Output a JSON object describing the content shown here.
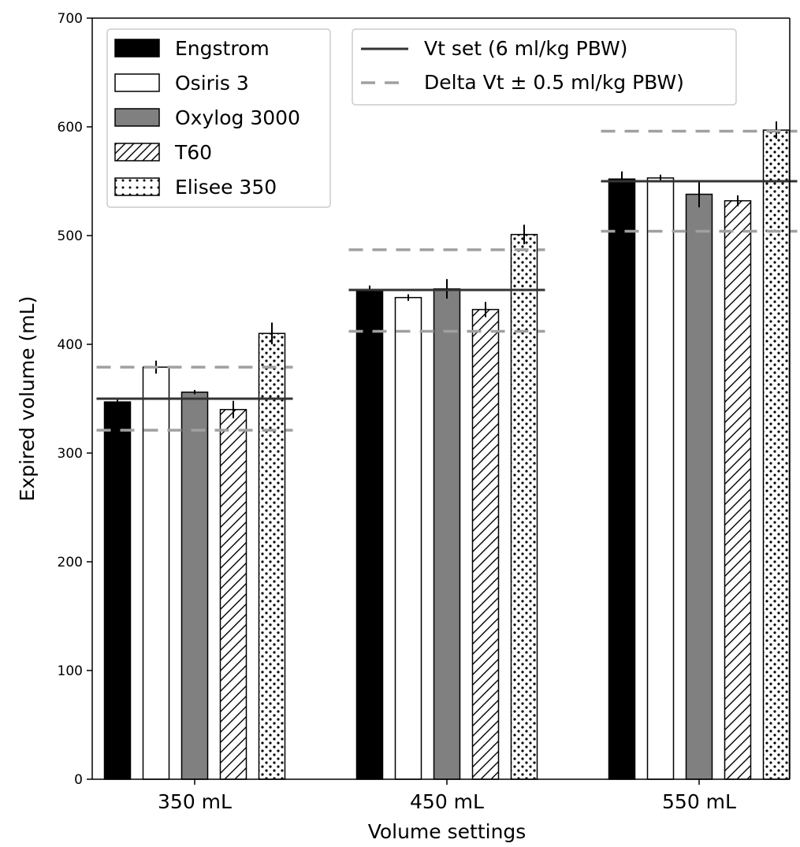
{
  "chart_data": {
    "type": "bar",
    "xlabel": "Volume settings",
    "ylabel": "Expired volume (mL)",
    "ylim": [
      0,
      700
    ],
    "yticks": [
      0,
      100,
      200,
      300,
      400,
      500,
      600,
      700
    ],
    "categories": [
      "350 mL",
      "450 mL",
      "550 mL"
    ],
    "series": [
      {
        "name": "Engstrom",
        "values": [
          347,
          450,
          552
        ],
        "errors": [
          3,
          4,
          7
        ],
        "fill": "#000000",
        "pattern": "solid"
      },
      {
        "name": "Osiris 3",
        "values": [
          379,
          443,
          553
        ],
        "errors": [
          6,
          3,
          3
        ],
        "fill": "#ffffff",
        "pattern": "solid"
      },
      {
        "name": "Oxylog 3000",
        "values": [
          356,
          451,
          538
        ],
        "errors": [
          2,
          9,
          12
        ],
        "fill": "#808080",
        "pattern": "solid"
      },
      {
        "name": "T60",
        "values": [
          340,
          432,
          532
        ],
        "errors": [
          8,
          7,
          5
        ],
        "fill": "#ffffff",
        "pattern": "hatch"
      },
      {
        "name": "Elisee 350",
        "values": [
          410,
          501,
          597
        ],
        "errors": [
          10,
          9,
          8
        ],
        "fill": "#ffffff",
        "pattern": "dots"
      }
    ],
    "reference_lines": [
      {
        "name": "Vt set (6 ml/kg PBW)",
        "style": "solid",
        "color": "#333333",
        "values": [
          350,
          450,
          550
        ]
      },
      {
        "name": "Delta Vt ± 0.5 ml/kg PBW)",
        "style": "dashed",
        "color": "#a0a0a0",
        "upper": [
          379,
          487,
          596
        ],
        "lower": [
          321,
          412,
          504
        ]
      }
    ],
    "legend_placement": "top-left and top-center",
    "grid": false
  }
}
